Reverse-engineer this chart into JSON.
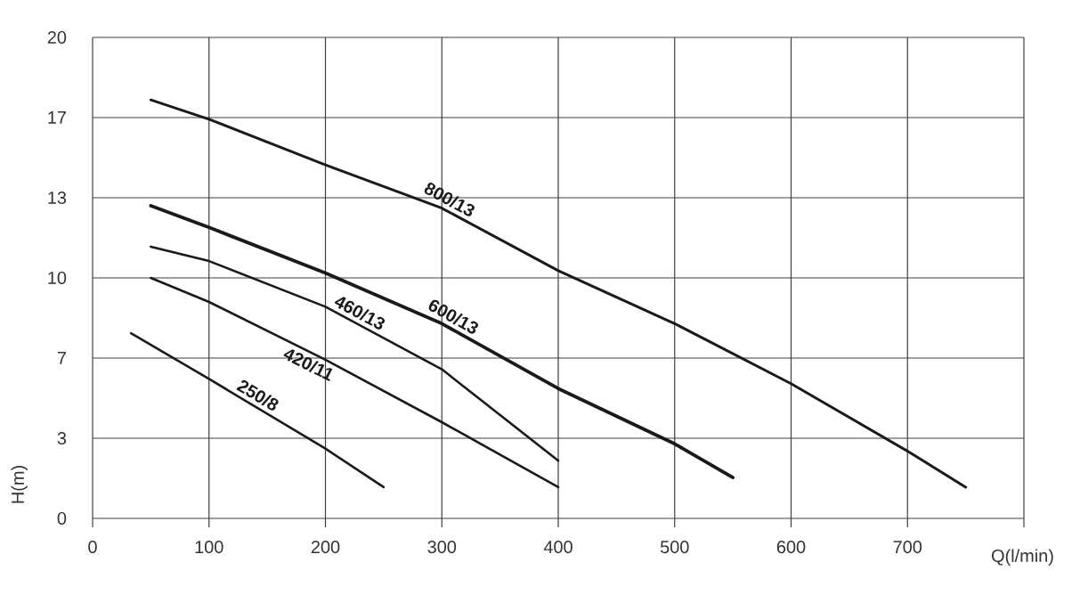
{
  "chart_data": {
    "type": "line",
    "xlabel": "Q(l/min)",
    "ylabel": "H(m)",
    "xlim": [
      0,
      800
    ],
    "ylim": [
      0,
      20
    ],
    "xticks": [
      0,
      100,
      200,
      300,
      400,
      500,
      600,
      700,
      {
        "value": 800,
        "label": null
      }
    ],
    "yticks": [
      0,
      {
        "value": 3.333,
        "label": "3"
      },
      {
        "value": 6.667,
        "label": "7"
      },
      10,
      {
        "value": 13.333,
        "label": "13"
      },
      {
        "value": 16.667,
        "label": "17"
      },
      20
    ],
    "grid": true,
    "marker": "none",
    "line_style": "solid",
    "series": [
      {
        "name": "800/13",
        "color": "#1a1a1a",
        "x": [
          50,
          100,
          200,
          300,
          400,
          500,
          600,
          700,
          750
        ],
        "values": [
          17.4,
          16.6,
          14.7,
          12.9,
          10.3,
          8.1,
          5.6,
          2.8,
          1.3
        ]
      },
      {
        "name": "600/13",
        "color": "#1a1a1a",
        "x": [
          50,
          100,
          200,
          300,
          400,
          500,
          550
        ],
        "values": [
          13.0,
          12.1,
          10.2,
          8.1,
          5.4,
          3.1,
          1.7
        ]
      },
      {
        "name": "460/13",
        "color": "#1a1a1a",
        "x": [
          50,
          100,
          200,
          300,
          400
        ],
        "values": [
          11.3,
          10.7,
          8.8,
          6.2,
          2.4
        ]
      },
      {
        "name": "420/11",
        "color": "#1a1a1a",
        "x": [
          50,
          100,
          200,
          300,
          400
        ],
        "values": [
          10.0,
          9.0,
          6.6,
          4.0,
          1.3
        ]
      },
      {
        "name": "250/8",
        "color": "#1a1a1a",
        "x": [
          33,
          100,
          200,
          250
        ],
        "values": [
          7.7,
          5.8,
          2.9,
          1.3
        ]
      }
    ]
  }
}
